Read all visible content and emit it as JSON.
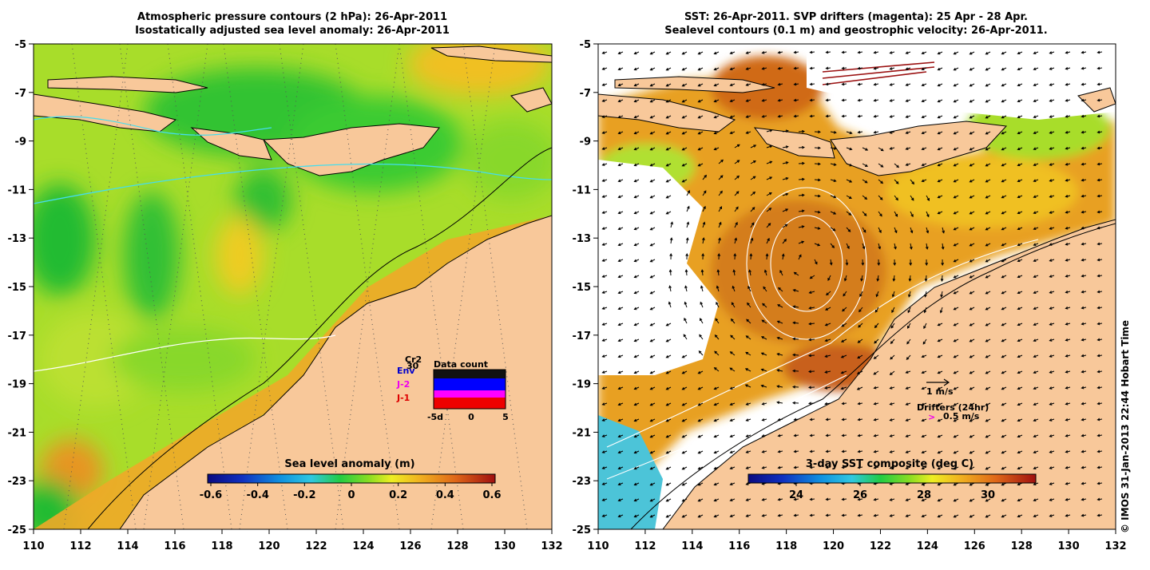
{
  "left_panel": {
    "title_line1": "Atmospheric pressure contours (2 hPa): 26-Apr-2011",
    "title_line2": "Isostatically adjusted sea level anomaly: 26-Apr-2011",
    "colorbar_label": "Sea level anomaly (m)",
    "colorbar_ticks": [
      "-0.6",
      "-0.4",
      "-0.2",
      "0",
      "0.2",
      "0.4",
      "0.6"
    ],
    "inset": {
      "title": "Data count",
      "missions": [
        {
          "label": "Cr2",
          "color": "#000000"
        },
        {
          "label": "Env",
          "color": "#0000cc"
        },
        {
          "label": "J-2",
          "color": "#ee00ee"
        },
        {
          "label": "J-1",
          "color": "#dd0000"
        }
      ],
      "extra_label": "30",
      "x_ticks": [
        "-5d",
        "0",
        "5"
      ]
    }
  },
  "right_panel": {
    "title_line1": "SST: 26-Apr-2011. SVP drifters (magenta): 25 Apr - 28 Apr.",
    "title_line2": "Sealevel contours (0.1 m) and geostrophic velocity: 26-Apr-2011.",
    "colorbar_label": "3-day SST composite (deg C)",
    "colorbar_ticks": [
      "24",
      "26",
      "28",
      "30"
    ],
    "velocity_scale_label": "1 m/s",
    "drifters_label": "Drifters (24hr)",
    "drifters_marker": ">",
    "drifters_scale_label": "0.5 m/s"
  },
  "stamp": "© IMOS 31-Jan-2013 22:44 Hobart Time",
  "colors": {
    "land": "#f8c89a",
    "ocean_green": "#44dd22",
    "ocean_yellow": "#ccee33",
    "ocean_orange": "#f0a020",
    "sst_warm": "#e08a20",
    "sst_hot": "#c86010",
    "no_data": "#ffffff",
    "drifter": "#ee00ee",
    "white_contour": "#ffffff",
    "cyan_contour": "#44ddee"
  },
  "chart_data": [
    {
      "type": "heatmap",
      "title": "Atmospheric pressure contours (2 hPa): 26-Apr-2011 / Isostatically adjusted sea level anomaly: 26-Apr-2011",
      "variable": "Sea level anomaly (m)",
      "xlim": [
        110,
        132
      ],
      "ylim": [
        -25,
        -5
      ],
      "x_ticks": [
        110,
        112,
        114,
        116,
        118,
        120,
        122,
        124,
        126,
        128,
        130,
        132
      ],
      "y_ticks": [
        -5,
        -7,
        -9,
        -11,
        -13,
        -15,
        -17,
        -19,
        -21,
        -23,
        -25
      ],
      "color_range": [
        -0.6,
        0.6
      ],
      "colormap": "blue-cyan-green-yellow-orange-red"
    },
    {
      "type": "heatmap",
      "title": "SST: 26-Apr-2011. SVP drifters (magenta): 25 Apr - 28 Apr. / Sealevel contours (0.1 m) and geostrophic velocity: 26-Apr-2011.",
      "variable": "3-day SST composite (deg C)",
      "xlim": [
        110,
        132
      ],
      "ylim": [
        -25,
        -5
      ],
      "x_ticks": [
        110,
        112,
        114,
        116,
        118,
        120,
        122,
        124,
        126,
        128,
        130,
        132
      ],
      "y_ticks": [
        -5,
        -7,
        -9,
        -11,
        -13,
        -15,
        -17,
        -19,
        -21,
        -23,
        -25
      ],
      "color_range": [
        22.5,
        31.5
      ],
      "colormap": "blue-cyan-green-yellow-orange-red",
      "overlay": "geostrophic velocity arrows"
    }
  ]
}
